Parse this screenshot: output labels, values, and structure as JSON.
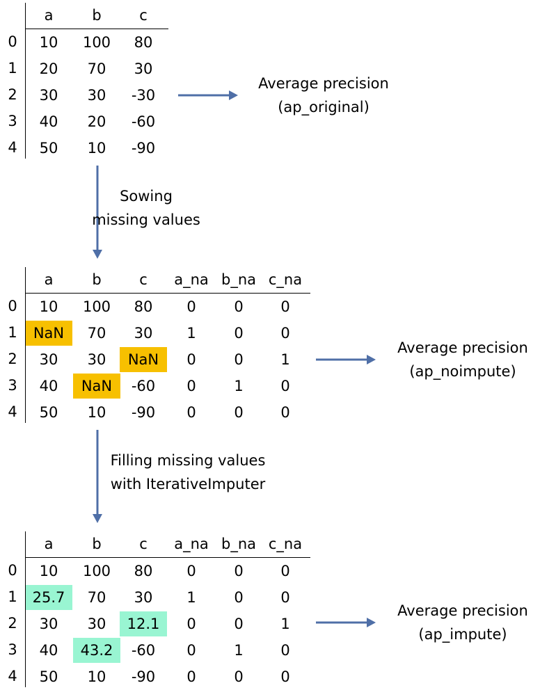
{
  "colors": {
    "missing_highlight": "#f7c000",
    "imputed_highlight": "#99f5d2",
    "arrow": "#4f6fa7"
  },
  "tables": [
    {
      "columns": [
        "a",
        "b",
        "c"
      ],
      "rows": [
        {
          "index": "0",
          "cells": [
            "10",
            "100",
            "80"
          ]
        },
        {
          "index": "1",
          "cells": [
            "20",
            "70",
            "30"
          ]
        },
        {
          "index": "2",
          "cells": [
            "30",
            "30",
            "-30"
          ]
        },
        {
          "index": "3",
          "cells": [
            "40",
            "20",
            "-60"
          ]
        },
        {
          "index": "4",
          "cells": [
            "50",
            "10",
            "-90"
          ]
        }
      ],
      "highlights": [],
      "result": {
        "line1": "Average precision",
        "line2": "(ap_original)"
      }
    },
    {
      "columns": [
        "a",
        "b",
        "c",
        "a_na",
        "b_na",
        "c_na"
      ],
      "rows": [
        {
          "index": "0",
          "cells": [
            "10",
            "100",
            "80",
            "0",
            "0",
            "0"
          ]
        },
        {
          "index": "1",
          "cells": [
            "NaN",
            "70",
            "30",
            "1",
            "0",
            "0"
          ]
        },
        {
          "index": "2",
          "cells": [
            "30",
            "30",
            "NaN",
            "0",
            "0",
            "1"
          ]
        },
        {
          "index": "3",
          "cells": [
            "40",
            "NaN",
            "-60",
            "0",
            "1",
            "0"
          ]
        },
        {
          "index": "4",
          "cells": [
            "50",
            "10",
            "-90",
            "0",
            "0",
            "0"
          ]
        }
      ],
      "highlights": [
        {
          "row": 1,
          "col": 0,
          "kind": "missing"
        },
        {
          "row": 2,
          "col": 2,
          "kind": "missing"
        },
        {
          "row": 3,
          "col": 1,
          "kind": "missing"
        }
      ],
      "result": {
        "line1": "Average precision",
        "line2": "(ap_noimpute)"
      }
    },
    {
      "columns": [
        "a",
        "b",
        "c",
        "a_na",
        "b_na",
        "c_na"
      ],
      "rows": [
        {
          "index": "0",
          "cells": [
            "10",
            "100",
            "80",
            "0",
            "0",
            "0"
          ]
        },
        {
          "index": "1",
          "cells": [
            "25.7",
            "70",
            "30",
            "1",
            "0",
            "0"
          ]
        },
        {
          "index": "2",
          "cells": [
            "30",
            "30",
            "12.1",
            "0",
            "0",
            "1"
          ]
        },
        {
          "index": "3",
          "cells": [
            "40",
            "43.2",
            "-60",
            "0",
            "1",
            "0"
          ]
        },
        {
          "index": "4",
          "cells": [
            "50",
            "10",
            "-90",
            "0",
            "0",
            "0"
          ]
        }
      ],
      "highlights": [
        {
          "row": 1,
          "col": 0,
          "kind": "imputed"
        },
        {
          "row": 2,
          "col": 2,
          "kind": "imputed"
        },
        {
          "row": 3,
          "col": 1,
          "kind": "imputed"
        }
      ],
      "result": {
        "line1": "Average precision",
        "line2": "(ap_impute)"
      }
    }
  ],
  "steps": [
    {
      "line1": "Sowing",
      "line2": "missing values"
    },
    {
      "line1": "Filling missing values",
      "line2": "with IterativeImputer"
    }
  ]
}
